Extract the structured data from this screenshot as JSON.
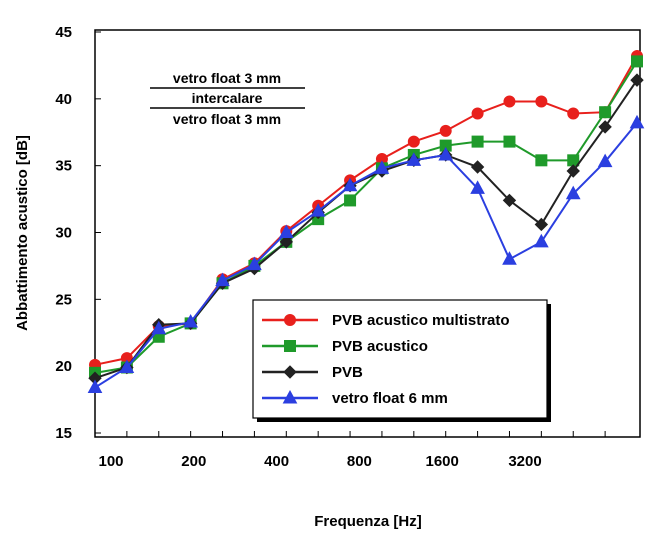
{
  "chart_data": {
    "type": "line",
    "xlabel": "Frequenza [Hz]",
    "ylabel": "Abbattimento acustico [dB]",
    "x": [
      100,
      125,
      160,
      200,
      250,
      315,
      400,
      500,
      630,
      800,
      1000,
      1250,
      1600,
      2000,
      2500,
      3150,
      4000,
      5000
    ],
    "x_scale": "log",
    "x_tick_labels": [
      "100",
      "200",
      "400",
      "800",
      "1600",
      "3200"
    ],
    "ylim": [
      15,
      45
    ],
    "y_ticks": [
      15,
      20,
      25,
      30,
      35,
      40,
      45
    ],
    "grid": false,
    "legend_position": "bottom-right",
    "annotation": {
      "top": "vetro float 3 mm",
      "middle": "intercalare",
      "bottom": "vetro float 3 mm"
    },
    "series": [
      {
        "name": "PVB acustico multistrato",
        "color": "#e8201c",
        "marker": "circle",
        "values": [
          20.1,
          20.6,
          23.0,
          23.2,
          26.5,
          27.7,
          30.1,
          32.0,
          33.9,
          35.5,
          36.8,
          37.6,
          38.9,
          39.8,
          39.8,
          38.9,
          39.0,
          43.2
        ]
      },
      {
        "name": "PVB acustico",
        "color": "#1f9a2a",
        "marker": "square",
        "values": [
          19.5,
          19.9,
          22.2,
          23.2,
          26.2,
          27.5,
          29.3,
          31.0,
          32.4,
          34.8,
          35.8,
          36.5,
          36.8,
          36.8,
          35.4,
          35.4,
          39.0,
          42.8
        ]
      },
      {
        "name": "PVB",
        "color": "#222222",
        "marker": "diamond",
        "values": [
          19.1,
          19.9,
          23.1,
          23.2,
          26.2,
          27.3,
          29.3,
          31.5,
          33.5,
          34.6,
          35.4,
          35.8,
          34.9,
          32.4,
          30.6,
          34.6,
          37.9,
          41.4
        ]
      },
      {
        "name": "vetro float 6 mm",
        "color": "#2b3fe0",
        "marker": "triangle",
        "values": [
          18.4,
          19.9,
          22.8,
          23.3,
          26.4,
          27.6,
          30.0,
          31.6,
          33.5,
          34.8,
          35.4,
          35.8,
          33.3,
          28.0,
          29.3,
          32.9,
          35.3,
          38.2
        ]
      }
    ]
  }
}
